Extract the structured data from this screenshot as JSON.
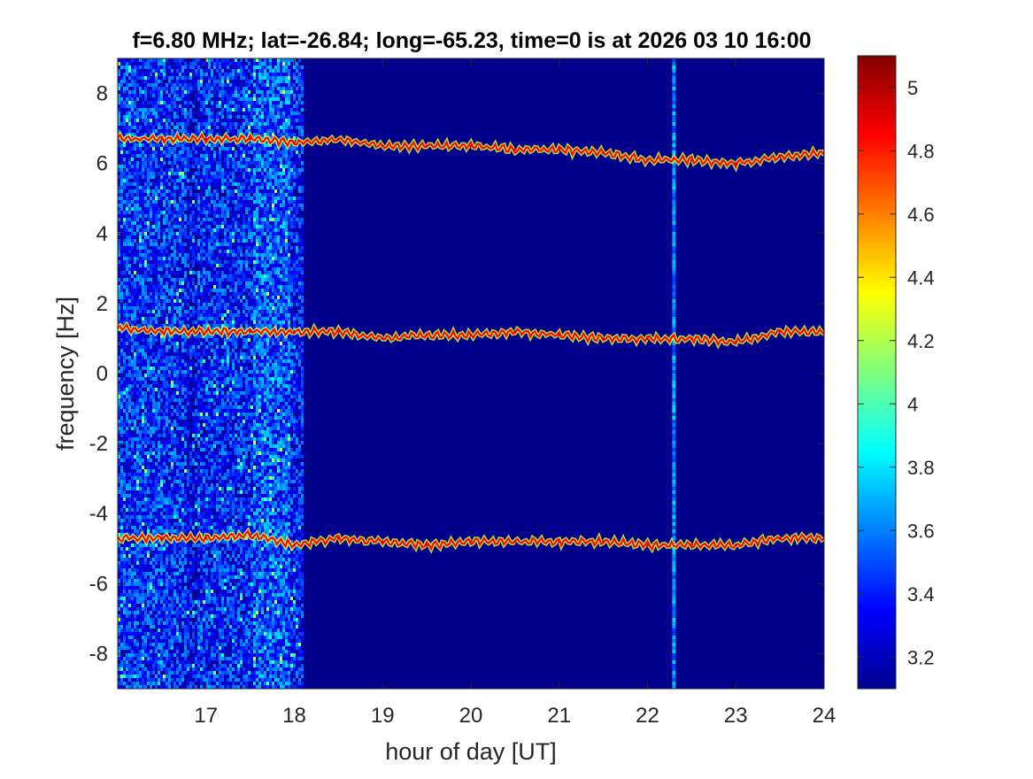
{
  "chart_data": {
    "type": "heatmap",
    "title": "f=6.80 MHz;  lat=-26.84; long=-65.23, time=0 is at 2026 03 10 16:00",
    "xlabel": "hour of day [UT]",
    "ylabel": "frequency [Hz]",
    "xlim": [
      16,
      24
    ],
    "ylim": [
      -9,
      9
    ],
    "xticks": [
      17,
      18,
      19,
      20,
      21,
      22,
      23,
      24
    ],
    "yticks": [
      -8,
      -6,
      -4,
      -2,
      0,
      2,
      4,
      6,
      8
    ],
    "colorbar": {
      "colormap": "jet",
      "clim": [
        3.1,
        5.1
      ],
      "ticks": [
        3.2,
        3.4,
        3.6,
        3.8,
        4,
        4.2,
        4.4,
        4.6,
        4.8,
        5
      ]
    },
    "background_value": 3.12,
    "noisy_band_hours": [
      16,
      18.1
    ],
    "vertical_stripe_hour": 22.3,
    "series": [
      {
        "x": [
          16.0,
          16.5,
          17.0,
          17.5,
          18.0,
          18.5,
          19.0,
          19.5,
          20.0,
          20.5,
          21.0,
          21.5,
          22.0,
          22.5,
          23.0,
          23.5,
          24.0
        ],
        "y": [
          6.7,
          6.7,
          6.7,
          6.7,
          6.6,
          6.7,
          6.5,
          6.5,
          6.5,
          6.4,
          6.4,
          6.3,
          6.1,
          6.1,
          6.0,
          6.2,
          6.3
        ]
      },
      {
        "x": [
          16.0,
          16.5,
          17.0,
          17.5,
          18.0,
          18.5,
          19.0,
          19.5,
          20.0,
          20.5,
          21.0,
          21.5,
          22.0,
          22.5,
          23.0,
          23.5,
          24.0
        ],
        "y": [
          1.3,
          1.2,
          1.2,
          1.2,
          1.2,
          1.2,
          1.0,
          1.1,
          1.1,
          1.2,
          1.1,
          1.0,
          1.0,
          1.0,
          0.9,
          1.2,
          1.2
        ]
      },
      {
        "x": [
          16.0,
          16.5,
          17.0,
          17.5,
          18.0,
          18.5,
          19.0,
          19.5,
          20.0,
          20.5,
          21.0,
          21.5,
          22.0,
          22.5,
          23.0,
          23.5,
          24.0
        ],
        "y": [
          -4.7,
          -4.7,
          -4.7,
          -4.6,
          -4.9,
          -4.7,
          -4.8,
          -4.9,
          -4.8,
          -4.8,
          -4.8,
          -4.8,
          -4.9,
          -4.9,
          -4.9,
          -4.7,
          -4.7
        ]
      }
    ],
    "grid": false,
    "legend": "none"
  }
}
